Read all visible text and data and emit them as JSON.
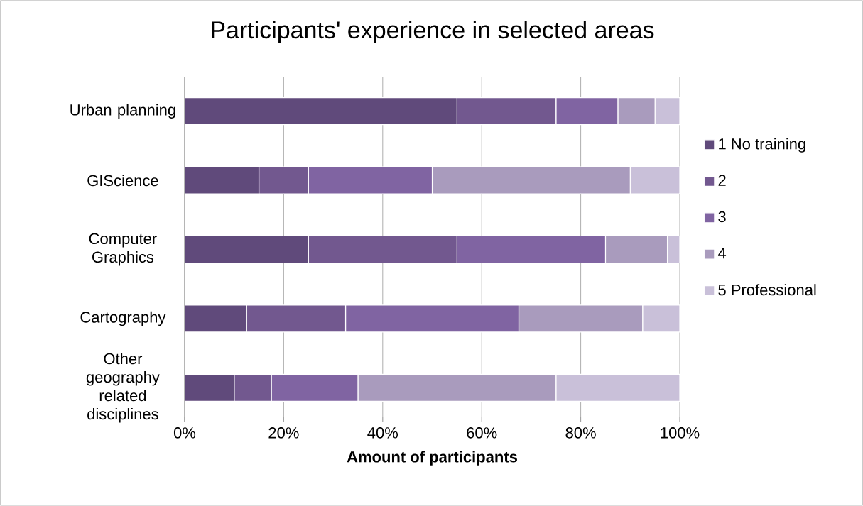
{
  "chart_data": {
    "type": "bar",
    "orientation": "horizontal",
    "stacked": true,
    "title": "Participants' experience in selected areas",
    "xlabel": "**Amount of participants**",
    "categories": [
      "Urban planning",
      "GIScience",
      "Computer Graphics",
      "Cartography",
      "Other geography related disciplines"
    ],
    "series": [
      {
        "name": "1 No training",
        "color": "#604a7b",
        "values": [
          55,
          15,
          25,
          12.5,
          10
        ]
      },
      {
        "name": "2",
        "color": "#72588f",
        "values": [
          20,
          10,
          30,
          20,
          7.5
        ]
      },
      {
        "name": "3",
        "color": "#8064a2",
        "values": [
          12.5,
          25,
          30,
          35,
          17.5
        ]
      },
      {
        "name": "4",
        "color": "#a99bbd",
        "values": [
          7.5,
          40,
          12.5,
          25,
          40
        ]
      },
      {
        "name": "5 Professional",
        "color": "#c9c0d9",
        "values": [
          5,
          10,
          2.5,
          7.5,
          25
        ]
      }
    ],
    "xlim": [
      0,
      100
    ],
    "xticks": [
      {
        "value": 0,
        "label": "0%"
      },
      {
        "value": 20,
        "label": "20%"
      },
      {
        "value": 40,
        "label": "40%"
      },
      {
        "value": 60,
        "label": "60%"
      },
      {
        "value": 80,
        "label": "80%"
      },
      {
        "value": 100,
        "label": "100%"
      }
    ],
    "grid": "x",
    "legend": "right"
  }
}
